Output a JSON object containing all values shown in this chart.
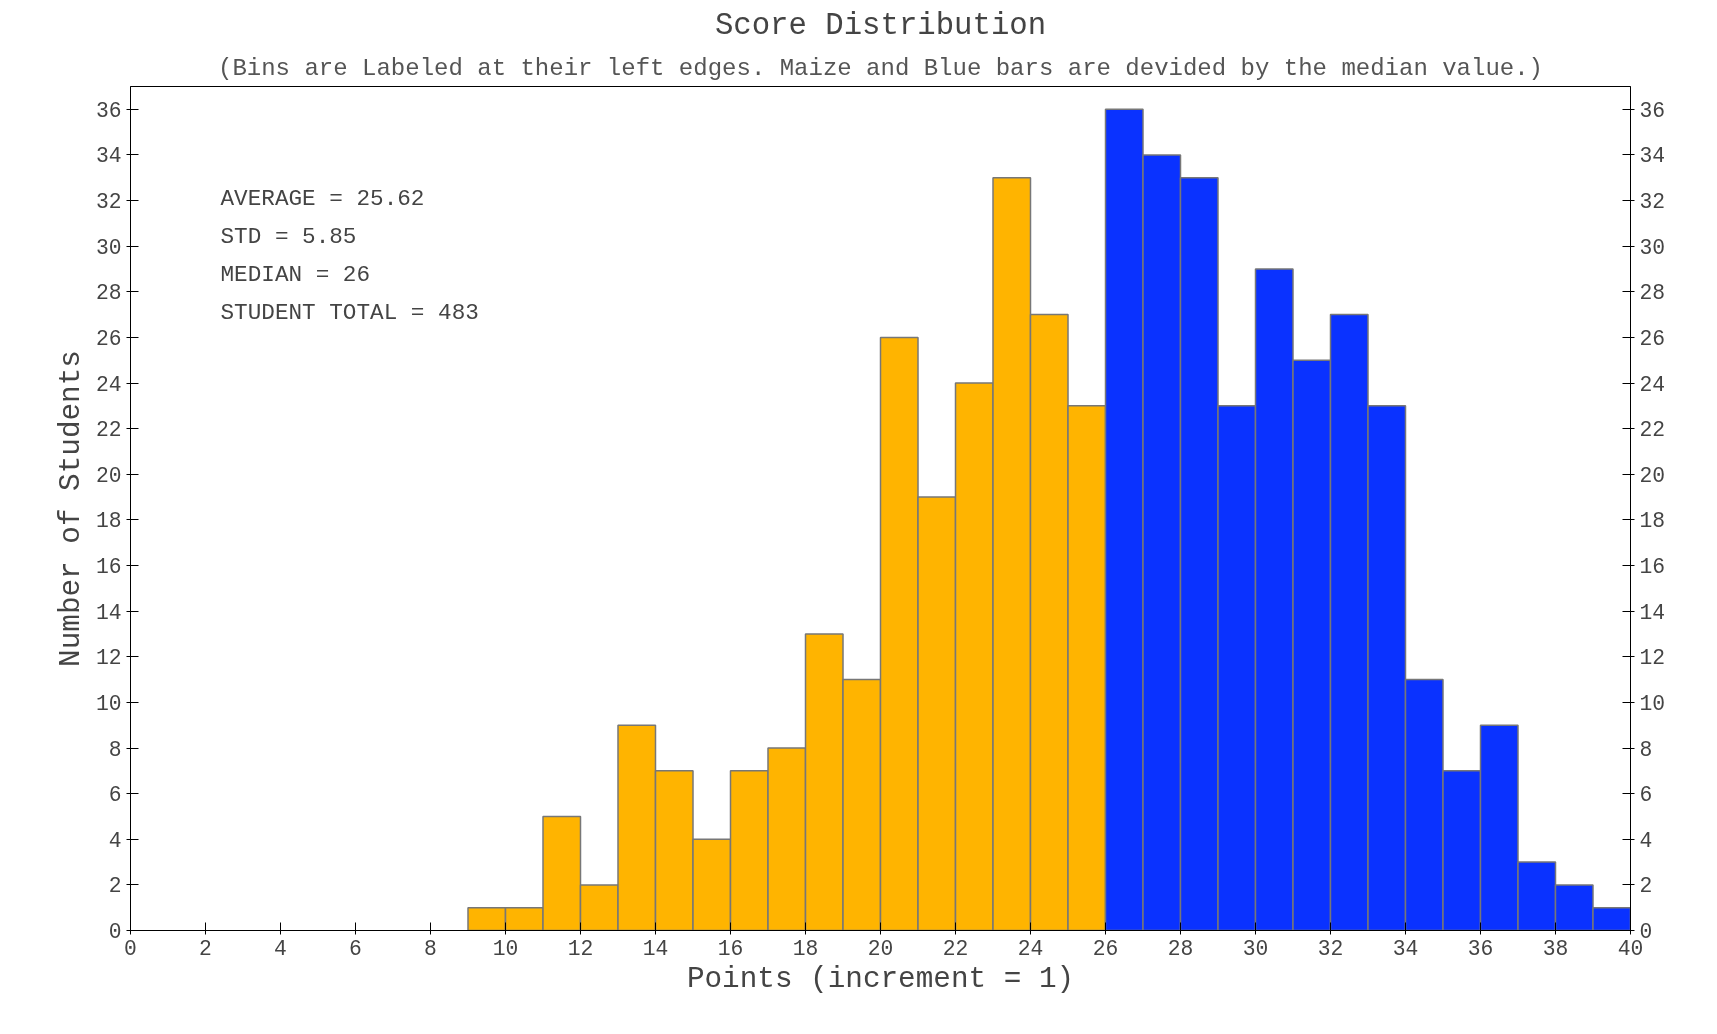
{
  "chart_data": {
    "type": "histogram",
    "title": "Score Distribution",
    "subtitle": "(Bins are Labeled at their left edges. Maize and Blue bars are devided by the median value.)",
    "xlabel": "Points (increment = 1)",
    "ylabel": "Number of Students",
    "bins": [
      9,
      10,
      11,
      12,
      13,
      14,
      15,
      16,
      17,
      18,
      19,
      20,
      21,
      22,
      23,
      24,
      25,
      26,
      27,
      28,
      29,
      30,
      31,
      32,
      33,
      34,
      35,
      36,
      37,
      38,
      39,
      40
    ],
    "values": [
      1,
      1,
      5,
      2,
      9,
      7,
      4,
      7,
      8,
      13,
      11,
      26,
      19,
      24,
      33,
      27,
      23,
      36,
      34,
      33,
      23,
      29,
      25,
      27,
      23,
      11,
      7,
      9,
      3,
      2,
      1
    ],
    "colors": [
      "#ffb400",
      "#ffb400",
      "#ffb400",
      "#ffb400",
      "#ffb400",
      "#ffb400",
      "#ffb400",
      "#ffb400",
      "#ffb400",
      "#ffb400",
      "#ffb400",
      "#ffb400",
      "#ffb400",
      "#ffb400",
      "#ffb400",
      "#ffb400",
      "#ffb400",
      "#0a32ff",
      "#0a32ff",
      "#0a32ff",
      "#0a32ff",
      "#0a32ff",
      "#0a32ff",
      "#0a32ff",
      "#0a32ff",
      "#0a32ff",
      "#0a32ff",
      "#0a32ff",
      "#0a32ff",
      "#0a32ff",
      "#0a32ff"
    ],
    "xlim": [
      0,
      40
    ],
    "xticks": [
      0,
      2,
      4,
      6,
      8,
      10,
      12,
      14,
      16,
      18,
      20,
      22,
      24,
      26,
      28,
      30,
      32,
      34,
      36,
      38,
      40
    ],
    "ylim": [
      0,
      37
    ],
    "yticks": [
      0,
      2,
      4,
      6,
      8,
      10,
      12,
      14,
      16,
      18,
      20,
      22,
      24,
      26,
      28,
      30,
      32,
      34,
      36
    ],
    "y2lim": [
      0,
      37
    ],
    "y2ticks": [
      0,
      2,
      4,
      6,
      8,
      10,
      12,
      14,
      16,
      18,
      20,
      22,
      24,
      26,
      28,
      30,
      32,
      34,
      36
    ],
    "annotations": [
      "AVERAGE = 25.62",
      "STD = 5.85",
      "MEDIAN = 26",
      "STUDENT TOTAL = 483"
    ],
    "grid": false
  }
}
